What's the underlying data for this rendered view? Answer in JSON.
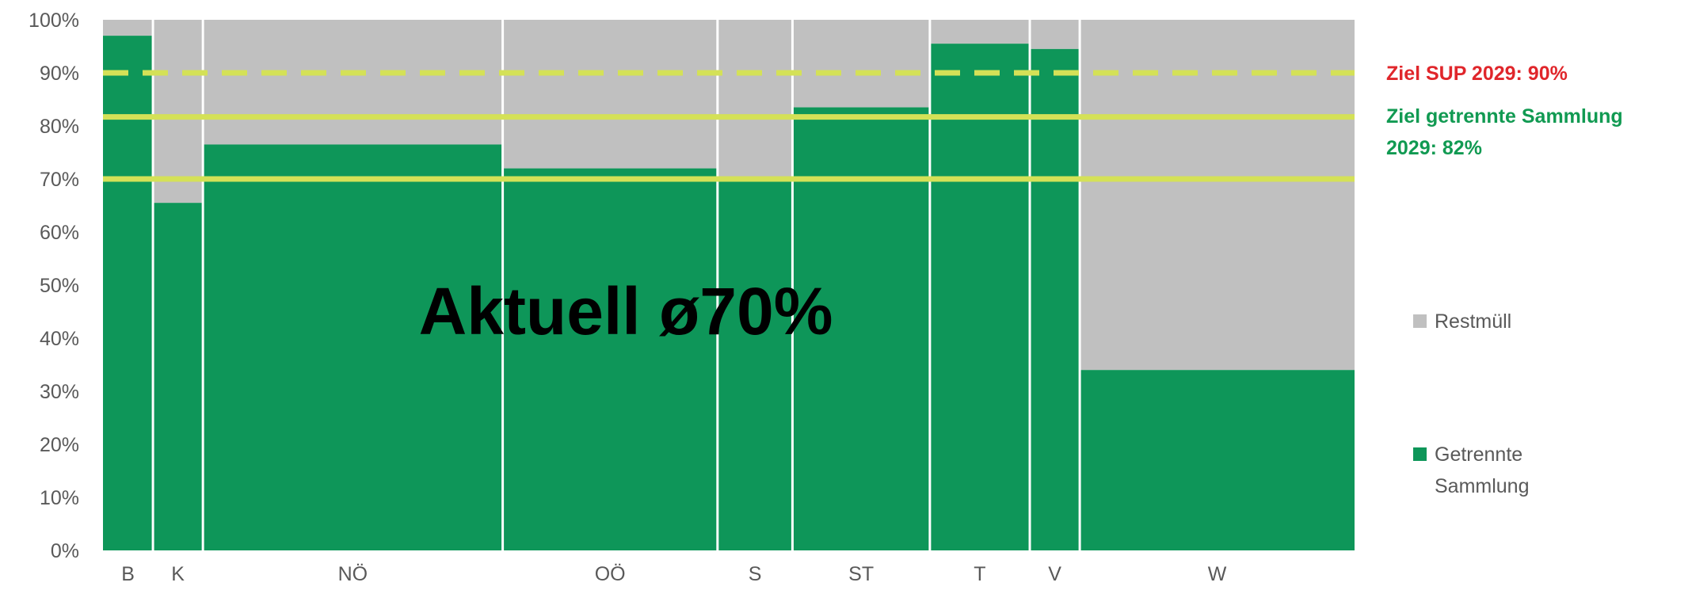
{
  "chart_data": {
    "type": "bar",
    "subtype": "stacked-variable-width (mekko)",
    "categories": [
      "B",
      "K",
      "NÖ",
      "OÖ",
      "S",
      "ST",
      "T",
      "V",
      "W"
    ],
    "relative_widths": [
      1,
      1,
      6,
      4.3,
      1.5,
      2.75,
      2,
      1,
      5.5
    ],
    "series": [
      {
        "name": "Getrennte Sammlung",
        "color": "#0e9659",
        "values": [
          97,
          65.5,
          76.5,
          72,
          69.5,
          83.5,
          95.5,
          94.5,
          34
        ]
      },
      {
        "name": "Restmüll",
        "color": "#c0c0c0",
        "values": [
          3,
          34.5,
          23.5,
          28,
          30.5,
          16.5,
          4.5,
          5.5,
          66
        ]
      }
    ],
    "y_ticks": [
      "0%",
      "10%",
      "20%",
      "30%",
      "40%",
      "50%",
      "60%",
      "70%",
      "80%",
      "90%",
      "100%"
    ],
    "ylim": [
      0,
      100
    ],
    "reference_lines": [
      {
        "value": 90,
        "style": "dashed",
        "color": "#d4e157",
        "label": "Ziel SUP 2029: 90%",
        "label_color": "#e0262b"
      },
      {
        "value": 81.7,
        "style": "solid",
        "color": "#d4e157",
        "label_lines": [
          "Ziel getrennte Sammlung",
          "2029: 82%"
        ],
        "label_color": "#119a52"
      },
      {
        "value": 70,
        "style": "solid",
        "color": "#d4e157"
      }
    ],
    "annotation": "Aktuell ø70%",
    "legend_position": "right",
    "legend": [
      {
        "label_lines": [
          "Restmüll"
        ],
        "color": "#c0c0c0"
      },
      {
        "label_lines": [
          "Getrennte",
          "Sammlung"
        ],
        "color": "#0e9659"
      }
    ]
  }
}
